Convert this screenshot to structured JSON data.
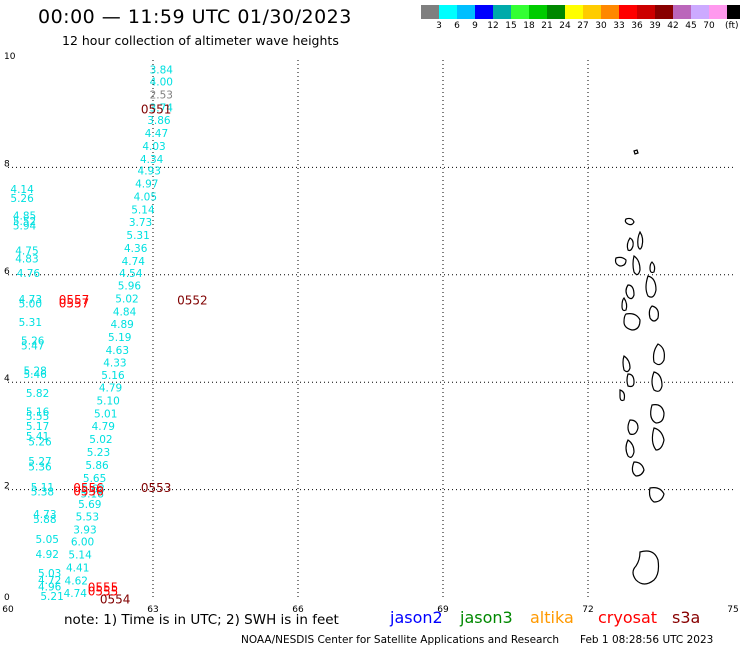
{
  "header": {
    "title": "00:00 — 11:59 UTC 01/30/2023",
    "subtitle": "12 hour collection of altimeter wave heights"
  },
  "legend": {
    "unit": "(ft)",
    "items": [
      {
        "label": "",
        "color": "#7f7f7f"
      },
      {
        "label": "3",
        "color": "#00ffff"
      },
      {
        "label": "6",
        "color": "#00bfff"
      },
      {
        "label": "9",
        "color": "#0000ff"
      },
      {
        "label": "12",
        "color": "#00aaaa"
      },
      {
        "label": "15",
        "color": "#33ff33"
      },
      {
        "label": "18",
        "color": "#00cc00"
      },
      {
        "label": "21",
        "color": "#008800"
      },
      {
        "label": "24",
        "color": "#ffff00"
      },
      {
        "label": "27",
        "color": "#ffcc00"
      },
      {
        "label": "30",
        "color": "#ff8800"
      },
      {
        "label": "33",
        "color": "#ff0000"
      },
      {
        "label": "36",
        "color": "#cc0000"
      },
      {
        "label": "39",
        "color": "#880000"
      },
      {
        "label": "42",
        "color": "#bb66bb"
      },
      {
        "label": "45",
        "color": "#ccaaff"
      },
      {
        "label": "70",
        "color": "#ff99ee"
      },
      {
        "label": "",
        "color": "#000000"
      }
    ]
  },
  "map": {
    "x_ticks": [
      "60",
      "63",
      "66",
      "69",
      "72",
      "75"
    ],
    "y_ticks": [
      "0",
      "2",
      "4",
      "6",
      "8",
      "10"
    ],
    "passes": [
      {
        "label": "0551",
        "lon": 62.75,
        "lat": 9.1,
        "color": "#800000"
      },
      {
        "label": "0552",
        "lon": 63.5,
        "lat": 5.54,
        "color": "#800000"
      },
      {
        "label": "0553",
        "lon": 62.75,
        "lat": 2.05,
        "color": "#800000"
      },
      {
        "label": "0554",
        "lon": 61.9,
        "lat": -0.03,
        "color": "#800000"
      },
      {
        "label": "0557",
        "lon": 61.05,
        "lat": 5.55,
        "color": "#ff0000"
      },
      {
        "label": "0557",
        "lon": 61.05,
        "lat": 5.48,
        "color": "#ff0000"
      },
      {
        "label": "0556",
        "lon": 61.35,
        "lat": 2.05,
        "color": "#ff0000"
      },
      {
        "label": "0556",
        "lon": 61.35,
        "lat": 1.98,
        "color": "#ff0000"
      },
      {
        "label": "0555",
        "lon": 61.65,
        "lat": 0.2,
        "color": "#ff0000"
      },
      {
        "label": "0555",
        "lon": 61.65,
        "lat": 0.12,
        "color": "#ff0000"
      }
    ],
    "heights": [
      {
        "v": "3.84",
        "lon": 62.93,
        "lat": 9.82,
        "color": "#00e0e0"
      },
      {
        "v": "4.00",
        "lon": 62.93,
        "lat": 9.6,
        "color": "#00e0e0"
      },
      {
        "v": "2.53",
        "lon": 62.93,
        "lat": 9.36,
        "color": "#808080"
      },
      {
        "v": "3.74",
        "lon": 62.93,
        "lat": 9.12,
        "color": "#00e0e0"
      },
      {
        "v": "3.86",
        "lon": 62.88,
        "lat": 8.88,
        "color": "#00e0e0"
      },
      {
        "v": "4.47",
        "lon": 62.83,
        "lat": 8.64,
        "color": "#00e0e0"
      },
      {
        "v": "4.03",
        "lon": 62.78,
        "lat": 8.4,
        "color": "#00e0e0"
      },
      {
        "v": "4.34",
        "lon": 62.73,
        "lat": 8.16,
        "color": "#00e0e0"
      },
      {
        "v": "4.93",
        "lon": 62.68,
        "lat": 7.94,
        "color": "#00e0e0"
      },
      {
        "v": "4.97",
        "lon": 62.63,
        "lat": 7.7,
        "color": "#00e0e0"
      },
      {
        "v": "4.05",
        "lon": 62.6,
        "lat": 7.46,
        "color": "#00e0e0"
      },
      {
        "v": "5.14",
        "lon": 62.55,
        "lat": 7.22,
        "color": "#00e0e0"
      },
      {
        "v": "3.73",
        "lon": 62.5,
        "lat": 6.98,
        "color": "#00e0e0"
      },
      {
        "v": "5.31",
        "lon": 62.45,
        "lat": 6.74,
        "color": "#00e0e0"
      },
      {
        "v": "4.36",
        "lon": 62.4,
        "lat": 6.5,
        "color": "#00e0e0"
      },
      {
        "v": "4.74",
        "lon": 62.35,
        "lat": 6.26,
        "color": "#00e0e0"
      },
      {
        "v": "4.54",
        "lon": 62.3,
        "lat": 6.03,
        "color": "#00e0e0"
      },
      {
        "v": "5.96",
        "lon": 62.27,
        "lat": 5.8,
        "color": "#00e0e0"
      },
      {
        "v": "5.02",
        "lon": 62.22,
        "lat": 5.56,
        "color": "#00e0e0"
      },
      {
        "v": "4.84",
        "lon": 62.17,
        "lat": 5.32,
        "color": "#00e0e0"
      },
      {
        "v": "4.89",
        "lon": 62.12,
        "lat": 5.08,
        "color": "#00e0e0"
      },
      {
        "v": "5.19",
        "lon": 62.07,
        "lat": 4.84,
        "color": "#00e0e0"
      },
      {
        "v": "4.63",
        "lon": 62.02,
        "lat": 4.6,
        "color": "#00e0e0"
      },
      {
        "v": "4.33",
        "lon": 61.97,
        "lat": 4.37,
        "color": "#00e0e0"
      },
      {
        "v": "5.16",
        "lon": 61.93,
        "lat": 4.13,
        "color": "#00e0e0"
      },
      {
        "v": "4.79",
        "lon": 61.88,
        "lat": 3.9,
        "color": "#00e0e0"
      },
      {
        "v": "5.10",
        "lon": 61.83,
        "lat": 3.66,
        "color": "#00e0e0"
      },
      {
        "v": "5.01",
        "lon": 61.78,
        "lat": 3.42,
        "color": "#00e0e0"
      },
      {
        "v": "4.79",
        "lon": 61.73,
        "lat": 3.18,
        "color": "#00e0e0"
      },
      {
        "v": "5.02",
        "lon": 61.68,
        "lat": 2.94,
        "color": "#00e0e0"
      },
      {
        "v": "5.23",
        "lon": 61.63,
        "lat": 2.7,
        "color": "#00e0e0"
      },
      {
        "v": "5.86",
        "lon": 61.6,
        "lat": 2.46,
        "color": "#00e0e0"
      },
      {
        "v": "5.65",
        "lon": 61.55,
        "lat": 2.22,
        "color": "#00e0e0"
      },
      {
        "v": "5.63",
        "lon": 61.52,
        "lat": 2.02,
        "color": "#00e0e0"
      },
      {
        "v": "5.18",
        "lon": 61.5,
        "lat": 1.93,
        "color": "#00e0e0"
      },
      {
        "v": "5.69",
        "lon": 61.45,
        "lat": 1.73,
        "color": "#00e0e0"
      },
      {
        "v": "5.53",
        "lon": 61.4,
        "lat": 1.5,
        "color": "#00e0e0"
      },
      {
        "v": "3.93",
        "lon": 61.35,
        "lat": 1.26,
        "color": "#00e0e0"
      },
      {
        "v": "6.00",
        "lon": 61.3,
        "lat": 1.03,
        "color": "#00e0e0"
      },
      {
        "v": "5.14",
        "lon": 61.25,
        "lat": 0.79,
        "color": "#00e0e0"
      },
      {
        "v": "4.41",
        "lon": 61.2,
        "lat": 0.55,
        "color": "#00e0e0"
      },
      {
        "v": "4.62",
        "lon": 61.17,
        "lat": 0.31,
        "color": "#00e0e0"
      },
      {
        "v": "4.74",
        "lon": 61.15,
        "lat": 0.07,
        "color": "#00e0e0"
      },
      {
        "v": "4.14",
        "lon": 60.05,
        "lat": 7.6,
        "color": "#00e0e0"
      },
      {
        "v": "5.26",
        "lon": 60.05,
        "lat": 7.43,
        "color": "#00e0e0"
      },
      {
        "v": "4.85",
        "lon": 60.1,
        "lat": 7.1,
        "color": "#00e0e0"
      },
      {
        "v": "5.52",
        "lon": 60.1,
        "lat": 7.0,
        "color": "#00e0e0"
      },
      {
        "v": "5.94",
        "lon": 60.1,
        "lat": 6.92,
        "color": "#00e0e0"
      },
      {
        "v": "4.75",
        "lon": 60.15,
        "lat": 6.45,
        "color": "#00e0e0"
      },
      {
        "v": "4.83",
        "lon": 60.15,
        "lat": 6.3,
        "color": "#00e0e0"
      },
      {
        "v": "4.76",
        "lon": 60.18,
        "lat": 6.03,
        "color": "#00e0e0"
      },
      {
        "v": "4.73",
        "lon": 60.22,
        "lat": 5.55,
        "color": "#00e0e0"
      },
      {
        "v": "5.00",
        "lon": 60.22,
        "lat": 5.47,
        "color": "#00e0e0"
      },
      {
        "v": "5.31",
        "lon": 60.22,
        "lat": 5.12,
        "color": "#00e0e0"
      },
      {
        "v": "5.26",
        "lon": 60.27,
        "lat": 4.78,
        "color": "#00e0e0"
      },
      {
        "v": "5.47",
        "lon": 60.27,
        "lat": 4.68,
        "color": "#00e0e0"
      },
      {
        "v": "5.28",
        "lon": 60.32,
        "lat": 4.22,
        "color": "#00e0e0"
      },
      {
        "v": "5.46",
        "lon": 60.32,
        "lat": 4.15,
        "color": "#00e0e0"
      },
      {
        "v": "5.82",
        "lon": 60.37,
        "lat": 3.8,
        "color": "#00e0e0"
      },
      {
        "v": "5.16",
        "lon": 60.37,
        "lat": 3.45,
        "color": "#00e0e0"
      },
      {
        "v": "5.55",
        "lon": 60.37,
        "lat": 3.37,
        "color": "#00e0e0"
      },
      {
        "v": "5.17",
        "lon": 60.37,
        "lat": 3.18,
        "color": "#00e0e0"
      },
      {
        "v": "5.41",
        "lon": 60.37,
        "lat": 3.0,
        "color": "#00e0e0"
      },
      {
        "v": "5.26",
        "lon": 60.42,
        "lat": 2.9,
        "color": "#00e0e0"
      },
      {
        "v": "5.27",
        "lon": 60.42,
        "lat": 2.53,
        "color": "#00e0e0"
      },
      {
        "v": "5.36",
        "lon": 60.42,
        "lat": 2.43,
        "color": "#00e0e0"
      },
      {
        "v": "5.11",
        "lon": 60.47,
        "lat": 2.05,
        "color": "#00e0e0"
      },
      {
        "v": "5.38",
        "lon": 60.47,
        "lat": 1.96,
        "color": "#00e0e0"
      },
      {
        "v": "4.73",
        "lon": 60.52,
        "lat": 1.55,
        "color": "#00e0e0"
      },
      {
        "v": "5.88",
        "lon": 60.52,
        "lat": 1.45,
        "color": "#00e0e0"
      },
      {
        "v": "5.05",
        "lon": 60.57,
        "lat": 1.08,
        "color": "#00e0e0"
      },
      {
        "v": "4.92",
        "lon": 60.57,
        "lat": 0.8,
        "color": "#00e0e0"
      },
      {
        "v": "5.03",
        "lon": 60.62,
        "lat": 0.45,
        "color": "#00e0e0"
      },
      {
        "v": "4.72",
        "lon": 60.62,
        "lat": 0.32,
        "color": "#00e0e0"
      },
      {
        "v": "4.96",
        "lon": 60.62,
        "lat": 0.2,
        "color": "#00e0e0"
      },
      {
        "v": "5.21",
        "lon": 60.67,
        "lat": 0.02,
        "color": "#00e0e0"
      }
    ]
  },
  "footer": {
    "note": "note: 1) Time is in UTC; 2) SWH is in feet",
    "satellites": [
      {
        "name": "jason2",
        "color": "#0000ff"
      },
      {
        "name": "jason3",
        "color": "#008800"
      },
      {
        "name": "altika",
        "color": "#ff9900"
      },
      {
        "name": "cryosat",
        "color": "#ff0000"
      },
      {
        "name": "s3a",
        "color": "#880000"
      }
    ],
    "credit": "NOAA/NESDIS Center for Satellite Applications and Research",
    "generated": "Feb  1 08:28:56 UTC 2023"
  }
}
